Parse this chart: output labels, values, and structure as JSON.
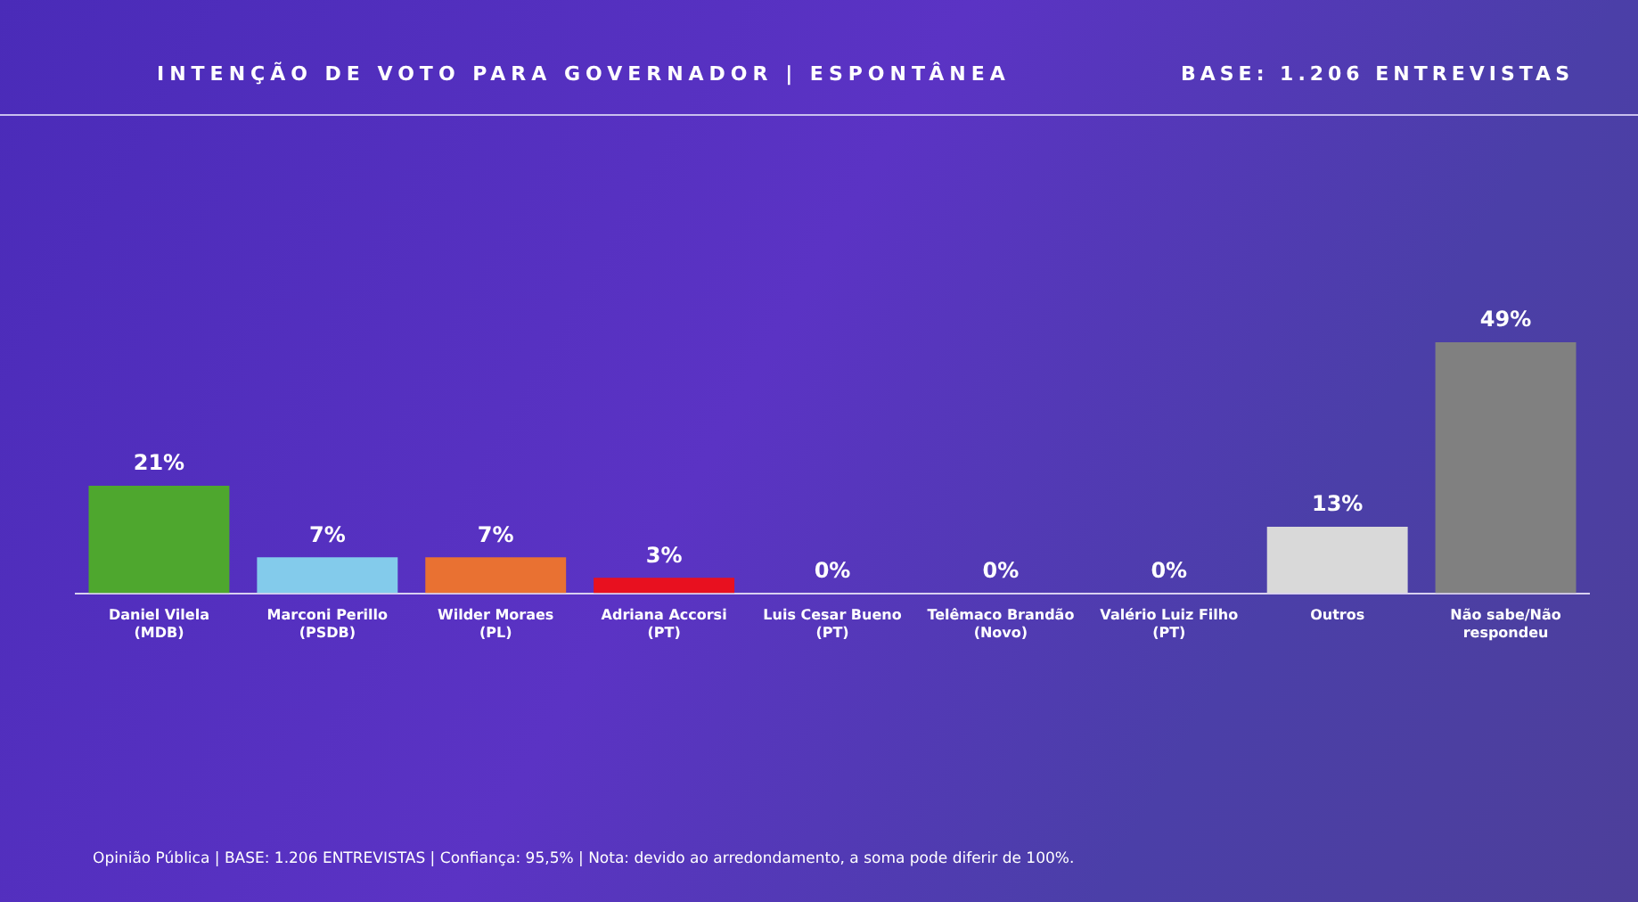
{
  "chart_data": {
    "type": "bar",
    "title": "INTENÇÃO DE VOTO PARA GOVERNADOR | ESPONTÂNEA",
    "subtitle": "BASE: 1.206 ENTREVISTAS",
    "categories": [
      "Daniel Vilela (MDB)",
      "Marconi Perillo (PSDB)",
      "Wilder Moraes (PL)",
      "Adriana Accorsi (PT)",
      "Luis Cesar Bueno (PT)",
      "Telêmaco Brandão (Novo)",
      "Valério Luiz Filho (PT)",
      "Outros",
      "Não sabe/Não respondeu"
    ],
    "values": [
      21,
      7,
      7,
      3,
      0,
      0,
      0,
      13,
      49
    ],
    "value_labels": [
      "21%",
      "7%",
      "7%",
      "3%",
      "0%",
      "0%",
      "0%",
      "13%",
      "49%"
    ],
    "colors": [
      "#4ea72e",
      "#83cbeb",
      "#e97132",
      "#e8101f",
      "#d9d9d9",
      "#d9d9d9",
      "#d9d9d9",
      "#d9d9d9",
      "#808080"
    ],
    "annotations": [
      "Opinião Pública | BASE: 1.206 ENTREVISTAS | Confiança: 95,5% | Nota: devido ao arredondamento, a soma pode diferir de 100%."
    ],
    "grid": false,
    "legend": false
  }
}
